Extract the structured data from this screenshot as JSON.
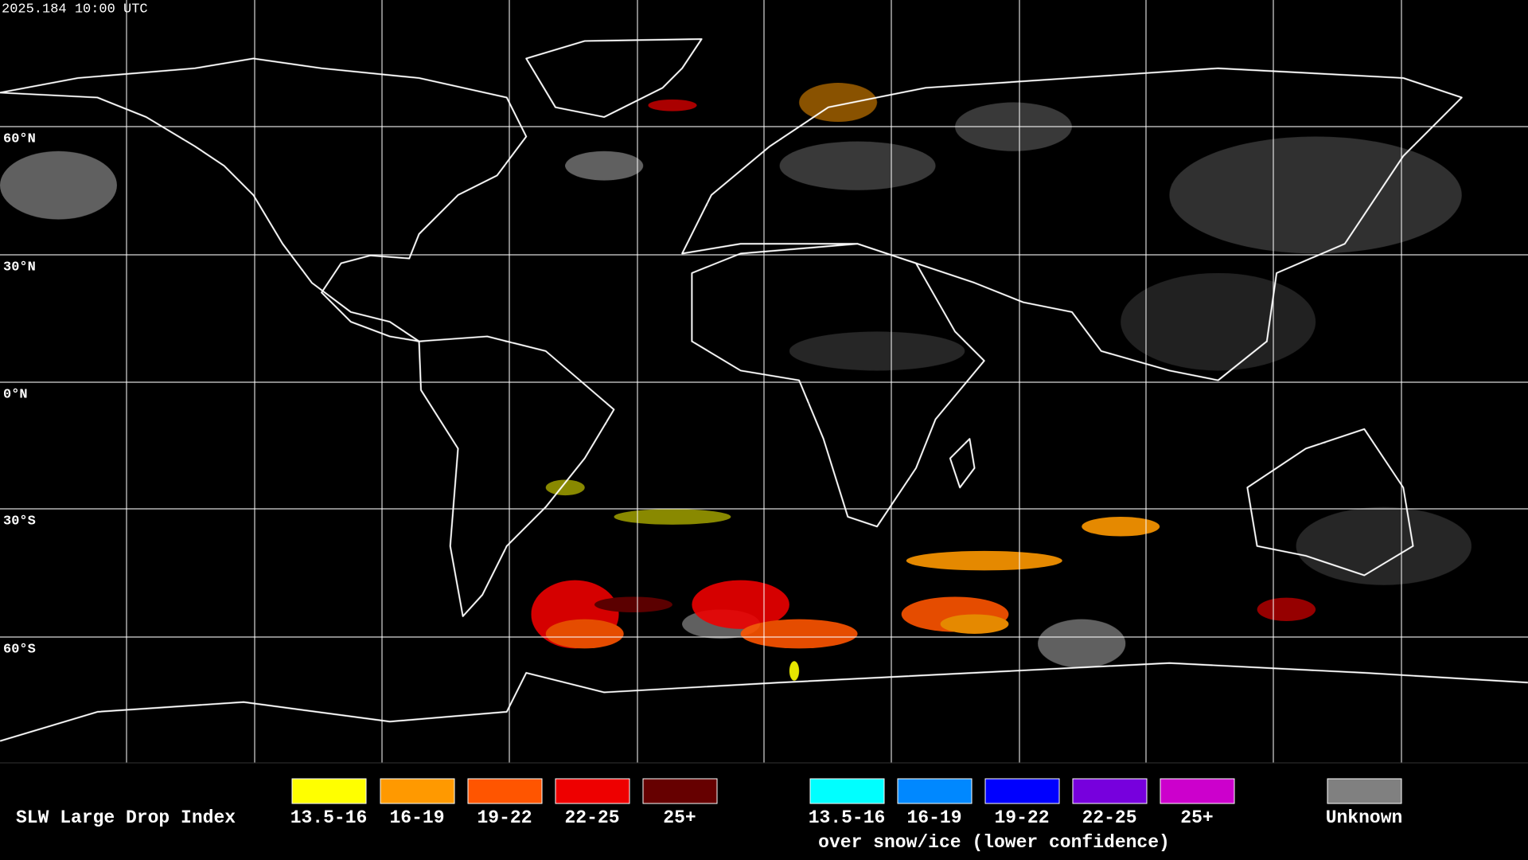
{
  "header": {
    "timestamp": "2025.184 10:00 UTC"
  },
  "map": {
    "latitude_labels": [
      "60°N",
      "30°N",
      "0°N",
      "30°S",
      "60°S"
    ]
  },
  "legend": {
    "title": "SLW Large Drop Index",
    "items": [
      {
        "label": "13.5-16",
        "color": "#ffff00"
      },
      {
        "label": "16-19",
        "color": "#ff9900"
      },
      {
        "label": "19-22",
        "color": "#ff5500"
      },
      {
        "label": "22-25",
        "color": "#ee0000"
      },
      {
        "label": "25+",
        "color": "#660000"
      }
    ],
    "snow_ice_items": [
      {
        "label": "13.5-16",
        "color": "#00ffff"
      },
      {
        "label": "16-19",
        "color": "#0088ff"
      },
      {
        "label": "19-22",
        "color": "#0000ff"
      },
      {
        "label": "22-25",
        "color": "#7700dd"
      },
      {
        "label": "25+",
        "color": "#cc00cc"
      }
    ],
    "snow_ice_caption": "over snow/ice (lower confidence)",
    "unknown": {
      "label": "Unknown",
      "color": "#808080"
    }
  }
}
